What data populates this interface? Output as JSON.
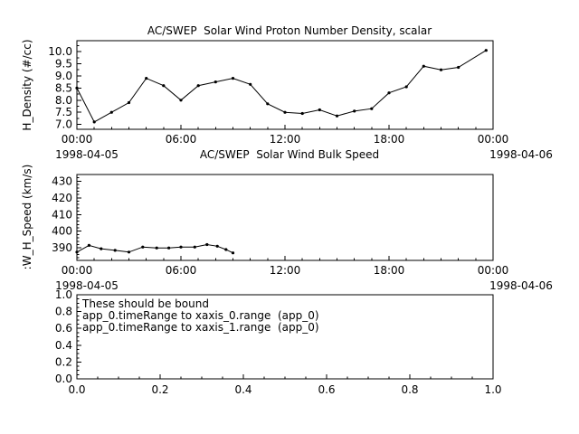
{
  "page": {
    "background": "#ffffff",
    "foreground": "#000000"
  },
  "chart_data": [
    {
      "type": "line",
      "title": "AC/SWEP  Solar Wind Proton Number Density, scalar",
      "ylabel": "H_Density (#/cc)",
      "x_start_label": "1998-04-05",
      "x_end_label": "1998-04-06",
      "xlim": [
        0,
        24
      ],
      "xticks": [
        {
          "x": 0,
          "label": "00:00"
        },
        {
          "x": 6,
          "label": "06:00"
        },
        {
          "x": 12,
          "label": "12:00"
        },
        {
          "x": 18,
          "label": "18:00"
        },
        {
          "x": 24,
          "label": "00:00"
        }
      ],
      "xtick_minor_step": 1,
      "ylim": [
        6.8,
        10.45
      ],
      "yticks": [
        7.0,
        7.5,
        8.0,
        8.5,
        9.0,
        9.5,
        10.0
      ],
      "ytick_minor_step": 0.25,
      "ytick_decimals": 1,
      "series": [
        {
          "name": "H_Density",
          "marker": "circle",
          "x": [
            0,
            1,
            2,
            3,
            4,
            5,
            6,
            7,
            8,
            9,
            10,
            11,
            12,
            13,
            14,
            15,
            16,
            17,
            18,
            19,
            20,
            21,
            22,
            23.6
          ],
          "values": [
            8.5,
            7.1,
            7.5,
            7.9,
            8.9,
            8.6,
            8.0,
            8.6,
            8.75,
            8.9,
            8.65,
            7.85,
            7.5,
            7.45,
            7.6,
            7.35,
            7.55,
            7.65,
            8.3,
            8.55,
            9.4,
            9.25,
            9.35,
            10.05
          ]
        }
      ]
    },
    {
      "type": "line",
      "title": "AC/SWEP  Solar Wind Bulk Speed",
      "ylabel": ":W_H_Speed (km/s)",
      "x_start_label": "1998-04-05",
      "x_end_label": "1998-04-06",
      "xlim": [
        0,
        24
      ],
      "xticks": [
        {
          "x": 0,
          "label": "00:00"
        },
        {
          "x": 6,
          "label": "06:00"
        },
        {
          "x": 12,
          "label": "12:00"
        },
        {
          "x": 18,
          "label": "18:00"
        },
        {
          "x": 24,
          "label": "00:00"
        }
      ],
      "xtick_minor_step": 1,
      "ylim": [
        382.5,
        434
      ],
      "yticks": [
        390,
        400,
        410,
        420,
        430
      ],
      "ytick_minor_step": 2,
      "ytick_decimals": 0,
      "series": [
        {
          "name": "W_H_Speed",
          "marker": "circle",
          "x": [
            0,
            0.7,
            1.4,
            2.2,
            3.0,
            3.8,
            4.6,
            5.3,
            6.0,
            6.8,
            7.5,
            8.1,
            8.6,
            9.0
          ],
          "values": [
            387.5,
            391.5,
            389.5,
            388.5,
            387.5,
            390.5,
            390,
            390,
            390.5,
            390.5,
            392,
            391,
            389,
            387
          ]
        }
      ]
    },
    {
      "type": "empty",
      "title": "",
      "ylabel": "",
      "xlim": [
        0,
        1
      ],
      "xticks": [
        {
          "x": 0,
          "label": "0.0"
        },
        {
          "x": 0.2,
          "label": "0.2"
        },
        {
          "x": 0.4,
          "label": "0.4"
        },
        {
          "x": 0.6,
          "label": "0.6"
        },
        {
          "x": 0.8,
          "label": "0.8"
        },
        {
          "x": 1,
          "label": "1.0"
        }
      ],
      "xtick_minor_step": 0.05,
      "ylim": [
        0,
        1
      ],
      "yticks": [
        0.0,
        0.2,
        0.4,
        0.6,
        0.8,
        1.0
      ],
      "ytick_minor_step": 0.05,
      "ytick_decimals": 1,
      "series": [],
      "annotations": [
        "These should be bound",
        "app_0.timeRange to xaxis_0.range  (app_0)",
        "app_0.timeRange to xaxis_1.range  (app_0)"
      ]
    }
  ]
}
